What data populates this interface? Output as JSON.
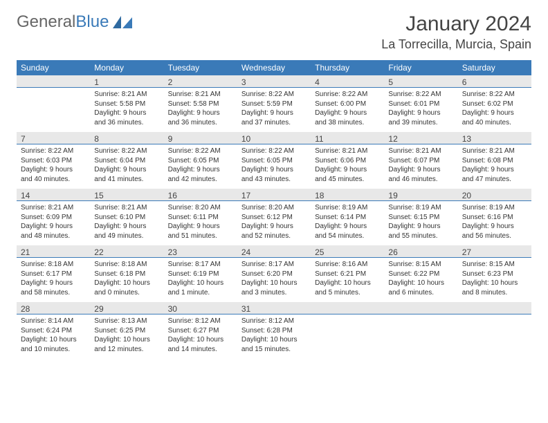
{
  "logo": {
    "text1": "General",
    "text2": "Blue"
  },
  "title": "January 2024",
  "location": "La Torrecilla, Murcia, Spain",
  "colors": {
    "header_bg": "#3a7ab8",
    "header_text": "#ffffff",
    "daybar_bg": "#e8e8e8",
    "daybar_border": "#3a7ab8",
    "body_text": "#333333",
    "logo_gray": "#666666",
    "logo_blue": "#3a7ab8"
  },
  "weekdays": [
    "Sunday",
    "Monday",
    "Tuesday",
    "Wednesday",
    "Thursday",
    "Friday",
    "Saturday"
  ],
  "weeks": [
    [
      null,
      {
        "n": "1",
        "sr": "8:21 AM",
        "ss": "5:58 PM",
        "dl": "9 hours and 36 minutes."
      },
      {
        "n": "2",
        "sr": "8:21 AM",
        "ss": "5:58 PM",
        "dl": "9 hours and 36 minutes."
      },
      {
        "n": "3",
        "sr": "8:22 AM",
        "ss": "5:59 PM",
        "dl": "9 hours and 37 minutes."
      },
      {
        "n": "4",
        "sr": "8:22 AM",
        "ss": "6:00 PM",
        "dl": "9 hours and 38 minutes."
      },
      {
        "n": "5",
        "sr": "8:22 AM",
        "ss": "6:01 PM",
        "dl": "9 hours and 39 minutes."
      },
      {
        "n": "6",
        "sr": "8:22 AM",
        "ss": "6:02 PM",
        "dl": "9 hours and 40 minutes."
      }
    ],
    [
      {
        "n": "7",
        "sr": "8:22 AM",
        "ss": "6:03 PM",
        "dl": "9 hours and 40 minutes."
      },
      {
        "n": "8",
        "sr": "8:22 AM",
        "ss": "6:04 PM",
        "dl": "9 hours and 41 minutes."
      },
      {
        "n": "9",
        "sr": "8:22 AM",
        "ss": "6:05 PM",
        "dl": "9 hours and 42 minutes."
      },
      {
        "n": "10",
        "sr": "8:22 AM",
        "ss": "6:05 PM",
        "dl": "9 hours and 43 minutes."
      },
      {
        "n": "11",
        "sr": "8:21 AM",
        "ss": "6:06 PM",
        "dl": "9 hours and 45 minutes."
      },
      {
        "n": "12",
        "sr": "8:21 AM",
        "ss": "6:07 PM",
        "dl": "9 hours and 46 minutes."
      },
      {
        "n": "13",
        "sr": "8:21 AM",
        "ss": "6:08 PM",
        "dl": "9 hours and 47 minutes."
      }
    ],
    [
      {
        "n": "14",
        "sr": "8:21 AM",
        "ss": "6:09 PM",
        "dl": "9 hours and 48 minutes."
      },
      {
        "n": "15",
        "sr": "8:21 AM",
        "ss": "6:10 PM",
        "dl": "9 hours and 49 minutes."
      },
      {
        "n": "16",
        "sr": "8:20 AM",
        "ss": "6:11 PM",
        "dl": "9 hours and 51 minutes."
      },
      {
        "n": "17",
        "sr": "8:20 AM",
        "ss": "6:12 PM",
        "dl": "9 hours and 52 minutes."
      },
      {
        "n": "18",
        "sr": "8:19 AM",
        "ss": "6:14 PM",
        "dl": "9 hours and 54 minutes."
      },
      {
        "n": "19",
        "sr": "8:19 AM",
        "ss": "6:15 PM",
        "dl": "9 hours and 55 minutes."
      },
      {
        "n": "20",
        "sr": "8:19 AM",
        "ss": "6:16 PM",
        "dl": "9 hours and 56 minutes."
      }
    ],
    [
      {
        "n": "21",
        "sr": "8:18 AM",
        "ss": "6:17 PM",
        "dl": "9 hours and 58 minutes."
      },
      {
        "n": "22",
        "sr": "8:18 AM",
        "ss": "6:18 PM",
        "dl": "10 hours and 0 minutes."
      },
      {
        "n": "23",
        "sr": "8:17 AM",
        "ss": "6:19 PM",
        "dl": "10 hours and 1 minute."
      },
      {
        "n": "24",
        "sr": "8:17 AM",
        "ss": "6:20 PM",
        "dl": "10 hours and 3 minutes."
      },
      {
        "n": "25",
        "sr": "8:16 AM",
        "ss": "6:21 PM",
        "dl": "10 hours and 5 minutes."
      },
      {
        "n": "26",
        "sr": "8:15 AM",
        "ss": "6:22 PM",
        "dl": "10 hours and 6 minutes."
      },
      {
        "n": "27",
        "sr": "8:15 AM",
        "ss": "6:23 PM",
        "dl": "10 hours and 8 minutes."
      }
    ],
    [
      {
        "n": "28",
        "sr": "8:14 AM",
        "ss": "6:24 PM",
        "dl": "10 hours and 10 minutes."
      },
      {
        "n": "29",
        "sr": "8:13 AM",
        "ss": "6:25 PM",
        "dl": "10 hours and 12 minutes."
      },
      {
        "n": "30",
        "sr": "8:12 AM",
        "ss": "6:27 PM",
        "dl": "10 hours and 14 minutes."
      },
      {
        "n": "31",
        "sr": "8:12 AM",
        "ss": "6:28 PM",
        "dl": "10 hours and 15 minutes."
      },
      null,
      null,
      null
    ]
  ]
}
